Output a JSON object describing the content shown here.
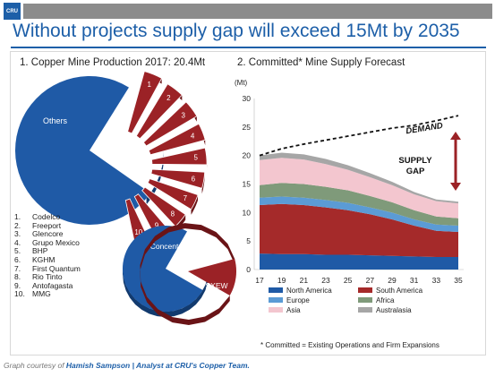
{
  "header": {
    "logo_text": "CRU",
    "title": "Without projects supply gap will exceed 15Mt by 2035"
  },
  "left_panel": {
    "subtitle": "1. Copper Mine Production 2017: 20.4Mt",
    "pie_labels": {
      "others": "Others",
      "concentrates": "Concentrates",
      "sxew": "SXEW"
    },
    "slice_numbers": [
      "1",
      "2",
      "3",
      "4",
      "5",
      "6",
      "7",
      "8",
      "9",
      "10"
    ],
    "companies": [
      {
        "n": "1.",
        "name": "Codelco"
      },
      {
        "n": "2.",
        "name": "Freeport"
      },
      {
        "n": "3.",
        "name": "Glencore"
      },
      {
        "n": "4.",
        "name": "Grupo Mexico"
      },
      {
        "n": "5.",
        "name": "BHP"
      },
      {
        "n": "6.",
        "name": "KGHM"
      },
      {
        "n": "7.",
        "name": "First Quantum"
      },
      {
        "n": "8.",
        "name": "Rio Tinto"
      },
      {
        "n": "9.",
        "name": "Antofagasta"
      },
      {
        "n": "10.",
        "name": "MMG"
      }
    ]
  },
  "right_panel": {
    "subtitle": "2. Committed* Mine Supply Forecast",
    "footnote": "* Committed = Existing Operations and Firm Expansions",
    "demand_label": "DEMAND",
    "gap_label": [
      "SUPPLY",
      "GAP"
    ]
  },
  "courtesy": {
    "prefix": "Graph courtesy of ",
    "name": "Hamish Sampson | Analyst at CRU's Copper Team."
  },
  "colors": {
    "brand_blue": "#1d5fa8",
    "pie_red": "#9b2226",
    "north_america": "#1f5aa6",
    "south_america": "#a52a2a",
    "europe": "#5b9bd5",
    "africa": "#7f9a7a",
    "asia": "#f3c6cf",
    "australasia": "#a6a6a6"
  },
  "chart_data": [
    {
      "type": "pie",
      "title": "Copper Mine Production 2017: 20.4Mt",
      "categories": [
        "Others",
        "1",
        "2",
        "3",
        "4",
        "5",
        "6",
        "7",
        "8",
        "9",
        "10"
      ]
    },
    {
      "type": "pie",
      "categories": [
        "Concentrates",
        "SXEW"
      ]
    },
    {
      "type": "area",
      "title": "Committed* Mine Supply Forecast",
      "ylabel": "(Mt)",
      "ylim": [
        0,
        30
      ],
      "yticks": [
        0,
        5,
        10,
        15,
        20,
        25,
        30
      ],
      "x": [
        17,
        19,
        21,
        23,
        25,
        27,
        29,
        31,
        33,
        35
      ],
      "stacked": true,
      "series": [
        {
          "name": "North America",
          "values": [
            2.8,
            2.7,
            2.7,
            2.6,
            2.6,
            2.5,
            2.4,
            2.3,
            2.2,
            2.2
          ]
        },
        {
          "name": "South America",
          "values": [
            8.5,
            8.8,
            8.6,
            8.3,
            7.8,
            7.2,
            6.4,
            5.4,
            4.6,
            4.4
          ]
        },
        {
          "name": "Europe",
          "values": [
            1.3,
            1.3,
            1.3,
            1.3,
            1.3,
            1.2,
            1.2,
            1.1,
            1.1,
            1.1
          ]
        },
        {
          "name": "Africa",
          "values": [
            2.2,
            2.4,
            2.4,
            2.3,
            2.2,
            2.0,
            1.8,
            1.6,
            1.4,
            1.3
          ]
        },
        {
          "name": "Asia",
          "values": [
            4.4,
            4.4,
            4.3,
            4.0,
            3.6,
            3.3,
            3.0,
            2.8,
            2.7,
            2.6
          ]
        },
        {
          "name": "Australasia",
          "values": [
            0.8,
            0.9,
            0.9,
            0.9,
            0.8,
            0.7,
            0.6,
            0.4,
            0.3,
            0.3
          ]
        }
      ],
      "demand": {
        "name": "DEMAND",
        "values": [
          20.0,
          21.2,
          22.0,
          22.7,
          23.4,
          24.1,
          24.8,
          25.3,
          26.1,
          27.0
        ]
      },
      "legend_position": "bottom"
    }
  ]
}
